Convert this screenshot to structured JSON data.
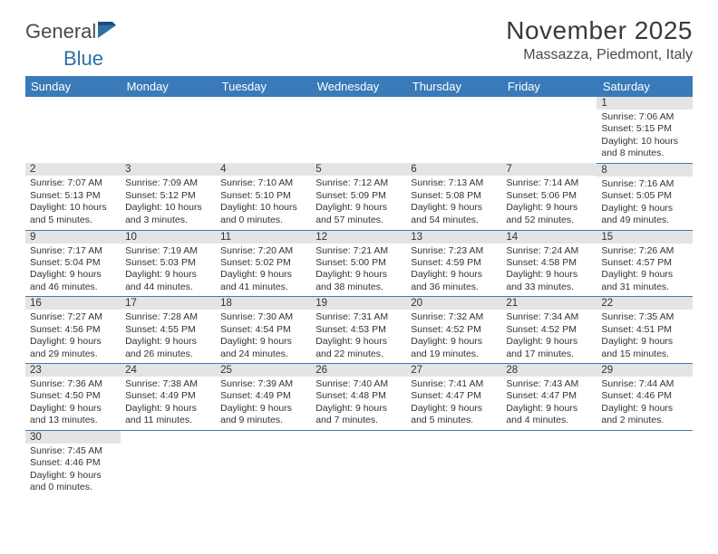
{
  "logo": {
    "text1": "General",
    "text2": "Blue",
    "flag_color": "#2f6fa8"
  },
  "title": "November 2025",
  "location": "Massazza, Piedmont, Italy",
  "columns": [
    "Sunday",
    "Monday",
    "Tuesday",
    "Wednesday",
    "Thursday",
    "Friday",
    "Saturday"
  ],
  "colors": {
    "header_bg": "#3a7ab8",
    "header_text": "#ffffff",
    "daynum_bg": "#e4e4e4",
    "cell_border": "#3a7ab8",
    "body_text": "#333333",
    "title_text": "#3a3a3a"
  },
  "typography": {
    "title_fontsize": 28,
    "location_fontsize": 16,
    "header_fontsize": 13,
    "daynum_fontsize": 11.5,
    "cell_fontsize": 10.5
  },
  "layout": {
    "first_day_col": 6,
    "days_in_month": 30,
    "rows": 6,
    "cols": 7
  },
  "days": [
    {
      "n": 1,
      "sunrise": "7:06 AM",
      "sunset": "5:15 PM",
      "day_h": 10,
      "day_m": 8
    },
    {
      "n": 2,
      "sunrise": "7:07 AM",
      "sunset": "5:13 PM",
      "day_h": 10,
      "day_m": 5
    },
    {
      "n": 3,
      "sunrise": "7:09 AM",
      "sunset": "5:12 PM",
      "day_h": 10,
      "day_m": 3
    },
    {
      "n": 4,
      "sunrise": "7:10 AM",
      "sunset": "5:10 PM",
      "day_h": 10,
      "day_m": 0
    },
    {
      "n": 5,
      "sunrise": "7:12 AM",
      "sunset": "5:09 PM",
      "day_h": 9,
      "day_m": 57
    },
    {
      "n": 6,
      "sunrise": "7:13 AM",
      "sunset": "5:08 PM",
      "day_h": 9,
      "day_m": 54
    },
    {
      "n": 7,
      "sunrise": "7:14 AM",
      "sunset": "5:06 PM",
      "day_h": 9,
      "day_m": 52
    },
    {
      "n": 8,
      "sunrise": "7:16 AM",
      "sunset": "5:05 PM",
      "day_h": 9,
      "day_m": 49
    },
    {
      "n": 9,
      "sunrise": "7:17 AM",
      "sunset": "5:04 PM",
      "day_h": 9,
      "day_m": 46
    },
    {
      "n": 10,
      "sunrise": "7:19 AM",
      "sunset": "5:03 PM",
      "day_h": 9,
      "day_m": 44
    },
    {
      "n": 11,
      "sunrise": "7:20 AM",
      "sunset": "5:02 PM",
      "day_h": 9,
      "day_m": 41
    },
    {
      "n": 12,
      "sunrise": "7:21 AM",
      "sunset": "5:00 PM",
      "day_h": 9,
      "day_m": 38
    },
    {
      "n": 13,
      "sunrise": "7:23 AM",
      "sunset": "4:59 PM",
      "day_h": 9,
      "day_m": 36
    },
    {
      "n": 14,
      "sunrise": "7:24 AM",
      "sunset": "4:58 PM",
      "day_h": 9,
      "day_m": 33
    },
    {
      "n": 15,
      "sunrise": "7:26 AM",
      "sunset": "4:57 PM",
      "day_h": 9,
      "day_m": 31
    },
    {
      "n": 16,
      "sunrise": "7:27 AM",
      "sunset": "4:56 PM",
      "day_h": 9,
      "day_m": 29
    },
    {
      "n": 17,
      "sunrise": "7:28 AM",
      "sunset": "4:55 PM",
      "day_h": 9,
      "day_m": 26
    },
    {
      "n": 18,
      "sunrise": "7:30 AM",
      "sunset": "4:54 PM",
      "day_h": 9,
      "day_m": 24
    },
    {
      "n": 19,
      "sunrise": "7:31 AM",
      "sunset": "4:53 PM",
      "day_h": 9,
      "day_m": 22
    },
    {
      "n": 20,
      "sunrise": "7:32 AM",
      "sunset": "4:52 PM",
      "day_h": 9,
      "day_m": 19
    },
    {
      "n": 21,
      "sunrise": "7:34 AM",
      "sunset": "4:52 PM",
      "day_h": 9,
      "day_m": 17
    },
    {
      "n": 22,
      "sunrise": "7:35 AM",
      "sunset": "4:51 PM",
      "day_h": 9,
      "day_m": 15
    },
    {
      "n": 23,
      "sunrise": "7:36 AM",
      "sunset": "4:50 PM",
      "day_h": 9,
      "day_m": 13
    },
    {
      "n": 24,
      "sunrise": "7:38 AM",
      "sunset": "4:49 PM",
      "day_h": 9,
      "day_m": 11
    },
    {
      "n": 25,
      "sunrise": "7:39 AM",
      "sunset": "4:49 PM",
      "day_h": 9,
      "day_m": 9
    },
    {
      "n": 26,
      "sunrise": "7:40 AM",
      "sunset": "4:48 PM",
      "day_h": 9,
      "day_m": 7
    },
    {
      "n": 27,
      "sunrise": "7:41 AM",
      "sunset": "4:47 PM",
      "day_h": 9,
      "day_m": 5
    },
    {
      "n": 28,
      "sunrise": "7:43 AM",
      "sunset": "4:47 PM",
      "day_h": 9,
      "day_m": 4
    },
    {
      "n": 29,
      "sunrise": "7:44 AM",
      "sunset": "4:46 PM",
      "day_h": 9,
      "day_m": 2
    },
    {
      "n": 30,
      "sunrise": "7:45 AM",
      "sunset": "4:46 PM",
      "day_h": 9,
      "day_m": 0
    }
  ],
  "labels": {
    "sunrise": "Sunrise:",
    "sunset": "Sunset:",
    "daylight_prefix": "Daylight:",
    "hours_word": "hours",
    "and_word": "and",
    "minutes_word": "minutes."
  }
}
